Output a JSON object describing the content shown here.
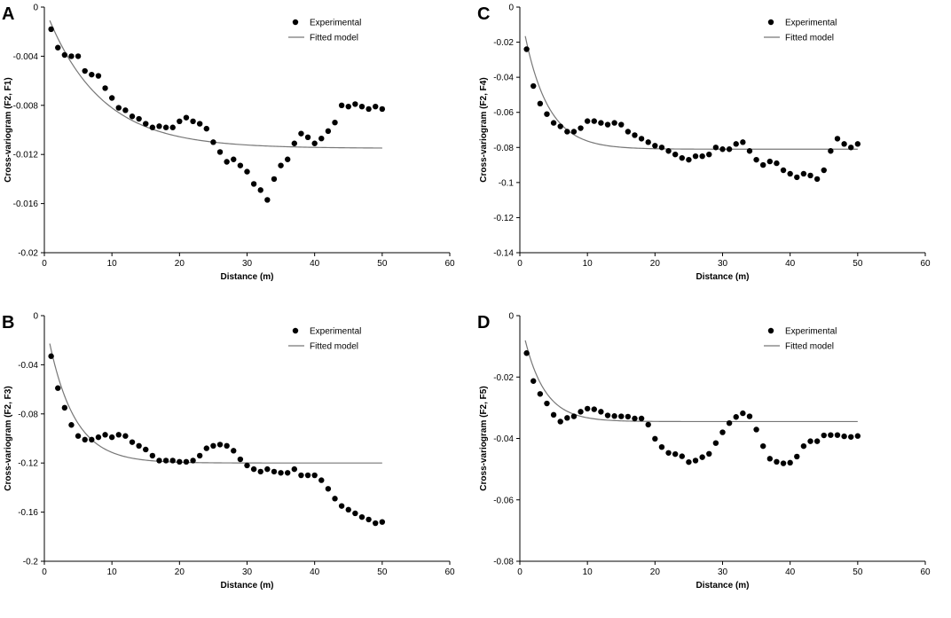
{
  "chart_data": [
    {
      "panel": "A",
      "type": "scatter",
      "xlabel": "Distance (m)",
      "ylabel": "Cross-variogram (F2, F1)",
      "xlim": [
        0,
        60
      ],
      "ylim": [
        -0.02,
        0
      ],
      "xticks": [
        0,
        10,
        20,
        30,
        40,
        50,
        60
      ],
      "xtick_labels": [
        "0",
        "10",
        "20",
        "30",
        "40",
        "50",
        "60"
      ],
      "yticks": [
        0,
        -0.004,
        -0.008,
        -0.012,
        -0.016,
        -0.02
      ],
      "ytick_labels": [
        "0",
        "-0.004",
        "-0.008",
        "-0.012",
        "-0.016",
        "-0.02"
      ],
      "legend": [
        "Experimental",
        "Fitted model"
      ],
      "legend_position": "top-right",
      "model": {
        "c": -0.0115,
        "a": 8,
        "sill_label": "",
        "x_start": 0.8,
        "x_end": 50
      },
      "series": [
        {
          "name": "Experimental",
          "kind": "points",
          "x": [
            1,
            2,
            3,
            4,
            5,
            6,
            7,
            8,
            9,
            10,
            11,
            12,
            13,
            14,
            15,
            16,
            17,
            18,
            19,
            20,
            21,
            22,
            23,
            24,
            25,
            26,
            27,
            28,
            29,
            30,
            31,
            32,
            33,
            34,
            35,
            36,
            37,
            38,
            39,
            40,
            41,
            42,
            43,
            44,
            45,
            46,
            47,
            48,
            49,
            50
          ],
          "y": [
            -0.0018,
            -0.0033,
            -0.0039,
            -0.004,
            -0.004,
            -0.0052,
            -0.0055,
            -0.0056,
            -0.0066,
            -0.0074,
            -0.0082,
            -0.0084,
            -0.0089,
            -0.0091,
            -0.0095,
            -0.0098,
            -0.0097,
            -0.0098,
            -0.0098,
            -0.0093,
            -0.009,
            -0.0093,
            -0.0095,
            -0.0099,
            -0.011,
            -0.0118,
            -0.0126,
            -0.0124,
            -0.0129,
            -0.0134,
            -0.0144,
            -0.0149,
            -0.0157,
            -0.014,
            -0.0129,
            -0.0124,
            -0.0111,
            -0.0103,
            -0.0106,
            -0.0111,
            -0.0107,
            -0.0101,
            -0.0094,
            -0.008,
            -0.0081,
            -0.0079,
            -0.0081,
            -0.0083,
            -0.0081,
            -0.0083
          ]
        }
      ]
    },
    {
      "panel": "C",
      "type": "scatter",
      "xlabel": "Distance (m)",
      "ylabel": "Cross-variogram (F2, F4)",
      "xlim": [
        0,
        60
      ],
      "ylim": [
        -0.14,
        0
      ],
      "xticks": [
        0,
        10,
        20,
        30,
        40,
        50,
        60
      ],
      "xtick_labels": [
        "0",
        "10",
        "20",
        "30",
        "40",
        "50",
        "60"
      ],
      "yticks": [
        0,
        -0.02,
        -0.04,
        -0.06,
        -0.08,
        -0.1,
        -0.12,
        -0.14
      ],
      "ytick_labels": [
        "0",
        "-0.02",
        "-0.04",
        "-0.06",
        "-0.08",
        "-0.1",
        "-0.12",
        "-0.14"
      ],
      "legend": [
        "Experimental",
        "Fitted model"
      ],
      "legend_position": "top-right",
      "model": {
        "c": -0.081,
        "a": 3.5,
        "x_start": 0.8,
        "x_end": 50
      },
      "series": [
        {
          "name": "Experimental",
          "kind": "points",
          "x": [
            1,
            2,
            3,
            4,
            5,
            6,
            7,
            8,
            9,
            10,
            11,
            12,
            13,
            14,
            15,
            16,
            17,
            18,
            19,
            20,
            21,
            22,
            23,
            24,
            25,
            26,
            27,
            28,
            29,
            30,
            31,
            32,
            33,
            34,
            35,
            36,
            37,
            38,
            39,
            40,
            41,
            42,
            43,
            44,
            45,
            46,
            47,
            48,
            49,
            50
          ],
          "y": [
            -0.024,
            -0.045,
            -0.055,
            -0.061,
            -0.066,
            -0.068,
            -0.071,
            -0.071,
            -0.069,
            -0.065,
            -0.065,
            -0.066,
            -0.067,
            -0.066,
            -0.067,
            -0.071,
            -0.073,
            -0.075,
            -0.077,
            -0.079,
            -0.08,
            -0.082,
            -0.084,
            -0.086,
            -0.087,
            -0.085,
            -0.085,
            -0.084,
            -0.08,
            -0.081,
            -0.081,
            -0.078,
            -0.077,
            -0.082,
            -0.087,
            -0.09,
            -0.088,
            -0.089,
            -0.093,
            -0.095,
            -0.097,
            -0.095,
            -0.096,
            -0.098,
            -0.093,
            -0.082,
            -0.075,
            -0.078,
            -0.08,
            -0.078
          ]
        }
      ]
    },
    {
      "panel": "B",
      "type": "scatter",
      "xlabel": "Distance (m)",
      "ylabel": "Cross-variogram (F2, F3)",
      "xlim": [
        0,
        60
      ],
      "ylim": [
        -0.2,
        0
      ],
      "xticks": [
        0,
        10,
        20,
        30,
        40,
        50,
        60
      ],
      "xtick_labels": [
        "0",
        "10",
        "20",
        "30",
        "40",
        "50",
        "60"
      ],
      "yticks": [
        0,
        -0.04,
        -0.08,
        -0.12,
        -0.16,
        -0.2
      ],
      "ytick_labels": [
        "0",
        "-0.04",
        "-0.08",
        "-0.12",
        "-0.16",
        "-0.2"
      ],
      "legend": [
        "Experimental",
        "Fitted model"
      ],
      "legend_position": "top-right",
      "model": {
        "c": -0.12,
        "a": 3.8,
        "x_start": 0.8,
        "x_end": 50
      },
      "series": [
        {
          "name": "Experimental",
          "kind": "points",
          "x": [
            1,
            2,
            3,
            4,
            5,
            6,
            7,
            8,
            9,
            10,
            11,
            12,
            13,
            14,
            15,
            16,
            17,
            18,
            19,
            20,
            21,
            22,
            23,
            24,
            25,
            26,
            27,
            28,
            29,
            30,
            31,
            32,
            33,
            34,
            35,
            36,
            37,
            38,
            39,
            40,
            41,
            42,
            43,
            44,
            45,
            46,
            47,
            48,
            49,
            50
          ],
          "y": [
            -0.033,
            -0.059,
            -0.075,
            -0.089,
            -0.098,
            -0.101,
            -0.101,
            -0.099,
            -0.097,
            -0.099,
            -0.097,
            -0.098,
            -0.103,
            -0.106,
            -0.109,
            -0.114,
            -0.118,
            -0.118,
            -0.118,
            -0.119,
            -0.119,
            -0.118,
            -0.114,
            -0.108,
            -0.106,
            -0.105,
            -0.106,
            -0.11,
            -0.117,
            -0.122,
            -0.125,
            -0.127,
            -0.125,
            -0.127,
            -0.128,
            -0.128,
            -0.125,
            -0.13,
            -0.13,
            -0.13,
            -0.134,
            -0.141,
            -0.149,
            -0.155,
            -0.158,
            -0.161,
            -0.164,
            -0.166,
            -0.169,
            -0.168
          ]
        }
      ]
    },
    {
      "panel": "D",
      "type": "scatter",
      "xlabel": "Distance (m)",
      "ylabel": "Cross-variogram (F2, F5)",
      "xlim": [
        0,
        60
      ],
      "ylim": [
        -0.08,
        0
      ],
      "xticks": [
        0,
        10,
        20,
        30,
        40,
        50,
        60
      ],
      "xtick_labels": [
        "0",
        "10",
        "20",
        "30",
        "40",
        "50",
        "60"
      ],
      "yticks": [
        0,
        -0.02,
        -0.04,
        -0.06,
        -0.08
      ],
      "ytick_labels": [
        "0",
        "-0.02",
        "-0.04",
        "-0.06",
        "-0.08"
      ],
      "legend": [
        "Experimental",
        "Fitted model"
      ],
      "legend_position": "top-right",
      "model": {
        "c": -0.0345,
        "a": 3,
        "x_start": 0.8,
        "x_end": 50
      },
      "series": [
        {
          "name": "Experimental",
          "kind": "points",
          "x": [
            1,
            2,
            3,
            4,
            5,
            6,
            7,
            8,
            9,
            10,
            11,
            12,
            13,
            14,
            15,
            16,
            17,
            18,
            19,
            20,
            21,
            22,
            23,
            24,
            25,
            26,
            27,
            28,
            29,
            30,
            31,
            32,
            33,
            34,
            35,
            36,
            37,
            38,
            39,
            40,
            41,
            42,
            43,
            44,
            45,
            46,
            47,
            48,
            49,
            50
          ],
          "y": [
            -0.0122,
            -0.0213,
            -0.0255,
            -0.0286,
            -0.0323,
            -0.0345,
            -0.0333,
            -0.0328,
            -0.0313,
            -0.0303,
            -0.0305,
            -0.0313,
            -0.0325,
            -0.0327,
            -0.0328,
            -0.0329,
            -0.0335,
            -0.0335,
            -0.0355,
            -0.0401,
            -0.0428,
            -0.0447,
            -0.0451,
            -0.0458,
            -0.0477,
            -0.0472,
            -0.0461,
            -0.045,
            -0.0415,
            -0.038,
            -0.035,
            -0.033,
            -0.0318,
            -0.0328,
            -0.0371,
            -0.0425,
            -0.0466,
            -0.0476,
            -0.0481,
            -0.0479,
            -0.0459,
            -0.0425,
            -0.0409,
            -0.0409,
            -0.039,
            -0.0389,
            -0.0389,
            -0.0393,
            -0.0395,
            -0.0392
          ]
        }
      ]
    }
  ]
}
